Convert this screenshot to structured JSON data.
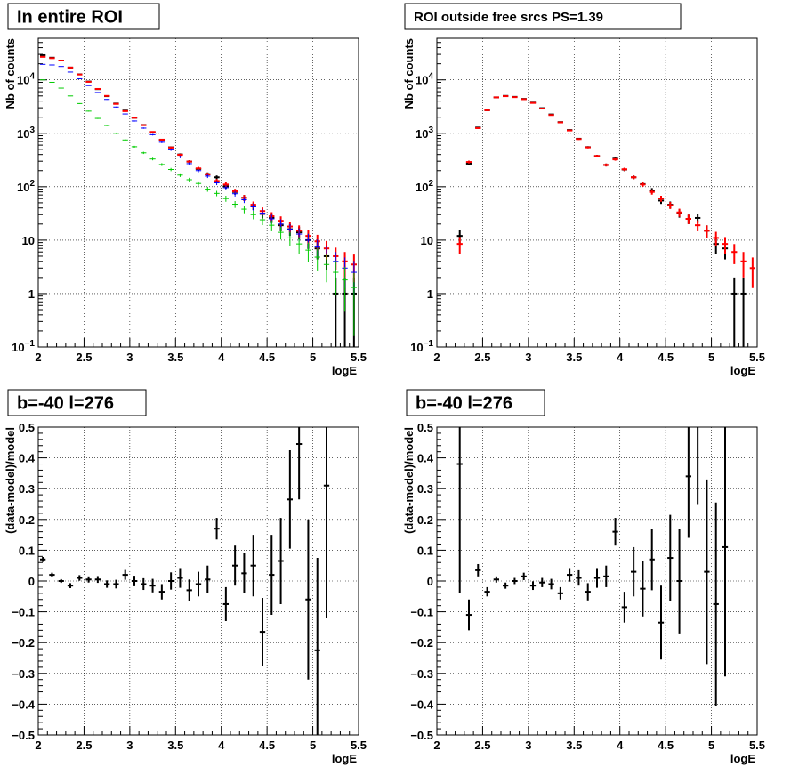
{
  "chart_data": [
    {
      "type": "scatter",
      "title": "In entire ROI",
      "xlabel": "logE",
      "ylabel": "Nb of counts",
      "xlim": [
        2,
        5.5
      ],
      "ylim": [
        0.1,
        60000
      ],
      "yscale": "log",
      "grid": true,
      "x_ticks": [
        "2",
        "2.5",
        "3",
        "3.5",
        "4",
        "4.5",
        "5",
        "5.5"
      ],
      "y_ticks": [
        {
          "base": "10",
          "exp": "−1"
        },
        {
          "base": "1",
          "exp": ""
        },
        {
          "base": "10",
          "exp": ""
        },
        {
          "base": "10",
          "exp": "2"
        },
        {
          "base": "10",
          "exp": "3"
        },
        {
          "base": "10",
          "exp": "4"
        }
      ],
      "series": [
        {
          "color": "#000000",
          "x": [
            2.05,
            2.15,
            2.25,
            2.35,
            2.45,
            2.55,
            2.65,
            2.75,
            2.85,
            2.95,
            3.05,
            3.15,
            3.25,
            3.35,
            3.45,
            3.55,
            3.65,
            3.75,
            3.85,
            3.95,
            4.05,
            4.15,
            4.25,
            4.35,
            4.45,
            4.55,
            4.65,
            4.75,
            4.85,
            4.95,
            5.05,
            5.15,
            5.25,
            5.35,
            5.45
          ],
          "y": [
            29000,
            26000,
            23000,
            17000,
            12700,
            9300,
            6700,
            4950,
            3600,
            2660,
            1950,
            1430,
            1050,
            750,
            545,
            400,
            295,
            215,
            172,
            150,
            102,
            80,
            62,
            43,
            31,
            26,
            19,
            16,
            14,
            10,
            7,
            5,
            1,
            1,
            1
          ]
        },
        {
          "color": "#ff0000",
          "x": [
            2.05,
            2.15,
            2.25,
            2.35,
            2.45,
            2.55,
            2.65,
            2.75,
            2.85,
            2.95,
            3.05,
            3.15,
            3.25,
            3.35,
            3.45,
            3.55,
            3.65,
            3.75,
            3.85,
            3.95,
            4.05,
            4.15,
            4.25,
            4.35,
            4.45,
            4.55,
            4.65,
            4.75,
            4.85,
            4.95,
            5.05,
            5.15,
            5.25,
            5.35,
            5.45
          ],
          "y": [
            27000,
            25500,
            23000,
            17000,
            12600,
            9200,
            6750,
            5000,
            3550,
            2600,
            1950,
            1420,
            1060,
            760,
            540,
            395,
            295,
            220,
            170,
            128,
            110,
            82,
            62,
            46,
            35,
            28,
            23,
            18,
            15,
            12,
            9.5,
            7,
            5,
            4,
            3.5
          ]
        },
        {
          "color": "#0000ff",
          "x": [
            2.05,
            2.15,
            2.25,
            2.35,
            2.45,
            2.55,
            2.65,
            2.75,
            2.85,
            2.95,
            3.05,
            3.15,
            3.25,
            3.35,
            3.45,
            3.55,
            3.65,
            3.75,
            3.85,
            3.95,
            4.05,
            4.15,
            4.25,
            4.35,
            4.45,
            4.55,
            4.65,
            4.75,
            4.85,
            4.95,
            5.05,
            5.15,
            5.25,
            5.35,
            5.45
          ],
          "y": [
            19500,
            19000,
            17800,
            14000,
            10500,
            7800,
            5800,
            4300,
            3100,
            2300,
            1700,
            1250,
            940,
            680,
            490,
            360,
            270,
            200,
            158,
            118,
            96,
            74,
            57,
            42,
            32,
            25,
            20,
            16,
            13,
            10,
            7.5,
            5.5,
            4,
            3,
            2.5
          ]
        },
        {
          "color": "#00cc00",
          "x": [
            2.05,
            2.15,
            2.25,
            2.35,
            2.45,
            2.55,
            2.65,
            2.75,
            2.85,
            2.95,
            3.05,
            3.15,
            3.25,
            3.35,
            3.45,
            3.55,
            3.65,
            3.75,
            3.85,
            3.95,
            4.05,
            4.15,
            4.25,
            4.35,
            4.45,
            4.55,
            4.65,
            4.75,
            4.85,
            4.95,
            5.05,
            5.15,
            5.25,
            5.35,
            5.45
          ],
          "y": [
            10000,
            9000,
            7000,
            5000,
            3600,
            2600,
            1900,
            1400,
            1000,
            750,
            560,
            430,
            330,
            260,
            210,
            165,
            135,
            115,
            90,
            75,
            60,
            47,
            38,
            30,
            24,
            19,
            14,
            11,
            8.5,
            6.5,
            4.8,
            3.5,
            2.5,
            1.8,
            1.3
          ]
        }
      ]
    },
    {
      "type": "scatter",
      "title": "ROI outside free srcs PS=1.39",
      "xlabel": "logE",
      "ylabel": "Nb of counts",
      "xlim": [
        2,
        5.5
      ],
      "ylim": [
        0.1,
        60000
      ],
      "yscale": "log",
      "grid": true,
      "x_ticks": [
        "2",
        "2.5",
        "3",
        "3.5",
        "4",
        "4.5",
        "5",
        "5.5"
      ],
      "y_ticks": [
        {
          "base": "10",
          "exp": "−1"
        },
        {
          "base": "1",
          "exp": ""
        },
        {
          "base": "10",
          "exp": ""
        },
        {
          "base": "10",
          "exp": "2"
        },
        {
          "base": "10",
          "exp": "3"
        },
        {
          "base": "10",
          "exp": "4"
        }
      ],
      "series": [
        {
          "color": "#000000",
          "x": [
            2.25,
            2.35,
            2.45,
            2.55,
            2.65,
            2.75,
            2.85,
            2.95,
            3.05,
            3.15,
            3.25,
            3.35,
            3.45,
            3.55,
            3.65,
            3.75,
            3.85,
            3.95,
            4.05,
            4.15,
            4.25,
            4.35,
            4.45,
            4.55,
            4.65,
            4.75,
            4.85,
            4.95,
            5.05,
            5.15,
            5.25,
            5.35
          ],
          "y": [
            12,
            270,
            1280,
            2700,
            4700,
            5000,
            4800,
            4400,
            3750,
            2950,
            2250,
            1620,
            1150,
            790,
            550,
            375,
            255,
            335,
            210,
            150,
            112,
            85,
            55,
            46,
            32,
            25,
            26,
            15,
            8.5,
            7,
            1,
            1
          ]
        },
        {
          "color": "#ff0000",
          "x": [
            2.25,
            2.35,
            2.45,
            2.55,
            2.65,
            2.75,
            2.85,
            2.95,
            3.05,
            3.15,
            3.25,
            3.35,
            3.45,
            3.55,
            3.65,
            3.75,
            3.85,
            3.95,
            4.05,
            4.15,
            4.25,
            4.35,
            4.45,
            4.55,
            4.65,
            4.75,
            4.85,
            4.95,
            5.05,
            5.15,
            5.25,
            5.35,
            5.45
          ],
          "y": [
            8.5,
            290,
            1250,
            2700,
            4700,
            4950,
            4750,
            4350,
            3700,
            2900,
            2200,
            1600,
            1130,
            780,
            545,
            375,
            255,
            325,
            212,
            150,
            110,
            80,
            60,
            45,
            33,
            25,
            19,
            15,
            11,
            8.5,
            6,
            4,
            3
          ]
        }
      ]
    },
    {
      "type": "scatter",
      "title": "b=-40 l=276",
      "xlabel": "logE",
      "ylabel": "(data-model)/model",
      "xlim": [
        2,
        5.5
      ],
      "ylim": [
        -0.5,
        0.5
      ],
      "grid": true,
      "x_ticks": [
        "2",
        "2.5",
        "3",
        "3.5",
        "4",
        "4.5",
        "5",
        "5.5"
      ],
      "y_ticks": [
        "−0.5",
        "−0.4",
        "−0.3",
        "−0.2",
        "−0.1",
        "0",
        "0.1",
        "0.2",
        "0.3",
        "0.4",
        "0.5"
      ],
      "series": [
        {
          "color": "#000000",
          "x": [
            2.05,
            2.15,
            2.25,
            2.35,
            2.45,
            2.55,
            2.65,
            2.75,
            2.85,
            2.95,
            3.05,
            3.15,
            3.25,
            3.35,
            3.45,
            3.55,
            3.65,
            3.75,
            3.85,
            3.95,
            4.05,
            4.15,
            4.25,
            4.35,
            4.45,
            4.55,
            4.65,
            4.75,
            4.85,
            4.95,
            5.05,
            5.15
          ],
          "y": [
            0.07,
            0.02,
            0.0,
            -0.015,
            0.01,
            0.005,
            0.005,
            -0.01,
            -0.01,
            0.02,
            0.0,
            -0.01,
            -0.015,
            -0.035,
            0.0,
            0.01,
            -0.03,
            -0.01,
            0.005,
            0.17,
            -0.075,
            0.05,
            0.025,
            0.05,
            -0.165,
            0.02,
            0.065,
            0.265,
            0.445,
            -0.06,
            -0.225,
            0.31
          ],
          "err": [
            0.008,
            0.007,
            0.006,
            0.008,
            0.009,
            0.01,
            0.011,
            0.012,
            0.014,
            0.016,
            0.017,
            0.019,
            0.022,
            0.025,
            0.028,
            0.032,
            0.035,
            0.04,
            0.045,
            0.035,
            0.055,
            0.065,
            0.065,
            0.1,
            0.11,
            0.13,
            0.14,
            0.16,
            0.18,
            0.26,
            0.3,
            0.43
          ]
        }
      ]
    },
    {
      "type": "scatter",
      "title": "b=-40 l=276",
      "xlabel": "logE",
      "ylabel": "(data-model)/model",
      "xlim": [
        2,
        5.5
      ],
      "ylim": [
        -0.5,
        0.5
      ],
      "grid": true,
      "x_ticks": [
        "2",
        "2.5",
        "3",
        "3.5",
        "4",
        "4.5",
        "5",
        "5.5"
      ],
      "y_ticks": [
        "−0.5",
        "−0.4",
        "−0.3",
        "−0.2",
        "−0.1",
        "0",
        "0.1",
        "0.2",
        "0.3",
        "0.4",
        "0.5"
      ],
      "series": [
        {
          "color": "#000000",
          "x": [
            2.25,
            2.35,
            2.45,
            2.55,
            2.65,
            2.75,
            2.85,
            2.95,
            3.05,
            3.15,
            3.25,
            3.35,
            3.45,
            3.55,
            3.65,
            3.75,
            3.85,
            3.95,
            4.05,
            4.15,
            4.25,
            4.35,
            4.45,
            4.55,
            4.65,
            4.75,
            4.85,
            4.95,
            5.05,
            5.15
          ],
          "y": [
            0.38,
            -0.11,
            0.035,
            -0.035,
            0.005,
            -0.015,
            0.0,
            0.015,
            -0.015,
            -0.005,
            -0.01,
            -0.04,
            0.02,
            0.01,
            -0.035,
            0.01,
            0.015,
            0.16,
            -0.085,
            0.03,
            -0.025,
            0.07,
            -0.135,
            0.075,
            0.0,
            0.34,
            0.55,
            0.03,
            -0.075,
            0.11
          ],
          "err": [
            0.42,
            0.05,
            0.02,
            0.015,
            0.01,
            0.01,
            0.01,
            0.012,
            0.014,
            0.015,
            0.017,
            0.02,
            0.022,
            0.025,
            0.028,
            0.032,
            0.035,
            0.045,
            0.05,
            0.08,
            0.09,
            0.1,
            0.12,
            0.14,
            0.17,
            0.2,
            0.3,
            0.3,
            0.33,
            0.42
          ]
        }
      ]
    }
  ]
}
